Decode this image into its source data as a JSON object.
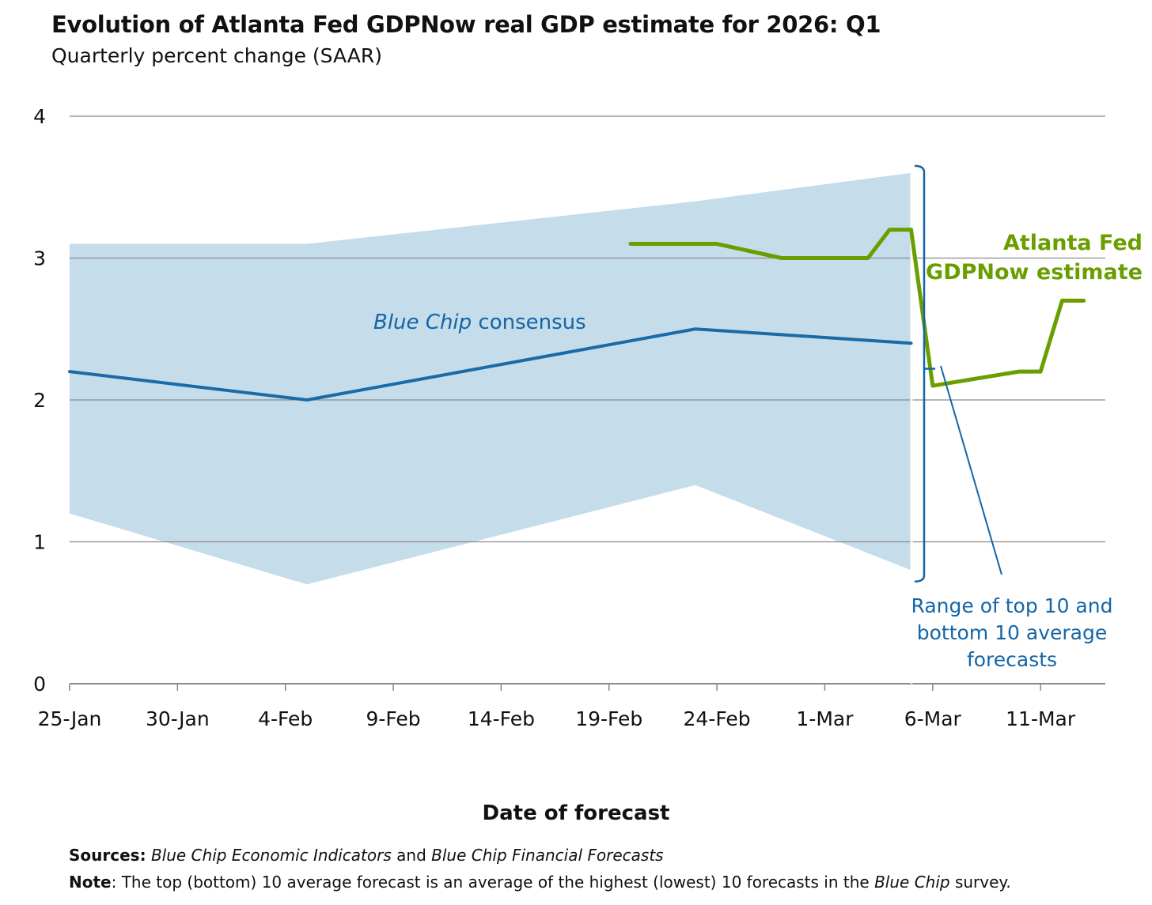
{
  "chart_data": {
    "type": "line",
    "title": "Evolution of Atlanta Fed GDPNow real GDP estimate for 2026: Q1",
    "subtitle": "Quarterly percent change (SAAR)",
    "xlabel": "Date of forecast",
    "ylabel": "",
    "ylim": [
      0,
      4
    ],
    "yticks": [
      "0",
      "1",
      "2",
      "3",
      "4"
    ],
    "xlim": [
      "2026-01-25",
      "2026-03-13"
    ],
    "xticks": [
      {
        "date": "2026-01-25",
        "label": "25-Jan"
      },
      {
        "date": "2026-01-30",
        "label": "30-Jan"
      },
      {
        "date": "2026-02-04",
        "label": "4-Feb"
      },
      {
        "date": "2026-02-09",
        "label": "9-Feb"
      },
      {
        "date": "2026-02-14",
        "label": "14-Feb"
      },
      {
        "date": "2026-02-19",
        "label": "19-Feb"
      },
      {
        "date": "2026-02-24",
        "label": "24-Feb"
      },
      {
        "date": "2026-03-01",
        "label": "1-Mar"
      },
      {
        "date": "2026-03-06",
        "label": "6-Mar"
      },
      {
        "date": "2026-03-11",
        "label": "11-Mar"
      }
    ],
    "grid": true,
    "series": [
      {
        "name": "Blue Chip consensus",
        "color": "#1a6aa8",
        "x": [
          "2026-01-25",
          "2026-02-05",
          "2026-02-23",
          "2026-03-05"
        ],
        "values": [
          2.2,
          2.0,
          2.5,
          2.4
        ]
      },
      {
        "name": "Atlanta Fed GDPNow estimate",
        "color": "#6a9e00",
        "x": [
          "2026-02-20",
          "2026-02-24",
          "2026-02-27",
          "2026-03-03",
          "2026-03-04",
          "2026-03-05",
          "2026-03-06",
          "2026-03-10",
          "2026-03-11",
          "2026-03-12",
          "2026-03-13"
        ],
        "values": [
          3.1,
          3.1,
          3.0,
          3.0,
          3.2,
          3.2,
          2.1,
          2.2,
          2.2,
          2.7,
          2.7
        ]
      }
    ],
    "range": {
      "name": "Range of top 10 and bottom 10 average forecasts",
      "color": "#c5dcea",
      "x": [
        "2026-01-25",
        "2026-02-05",
        "2026-02-23",
        "2026-03-05"
      ],
      "upper": [
        3.1,
        3.1,
        3.4,
        3.6
      ],
      "lower": [
        1.2,
        0.7,
        1.4,
        0.8
      ]
    },
    "annotations": {
      "bluechip_italic": "Blue Chip",
      "bluechip_rest": " consensus",
      "gdp_line1": "Atlanta Fed",
      "gdp_line2": "GDPNow estimate",
      "range_line1": "Range of top 10 and",
      "range_line2": "bottom 10 average",
      "range_line3": "forecasts"
    }
  },
  "footer": {
    "sources_label": "Sources:",
    "sources_italic1": "Blue Chip Economic Indicators",
    "sources_and": " and ",
    "sources_italic2": "Blue Chip Financial Forecasts",
    "note_label": "Note",
    "note_text1": ": The top (bottom) 10 average forecast is an average of the highest (lowest) 10 forecasts in the ",
    "note_italic": "Blue Chip",
    "note_text2": " survey."
  }
}
